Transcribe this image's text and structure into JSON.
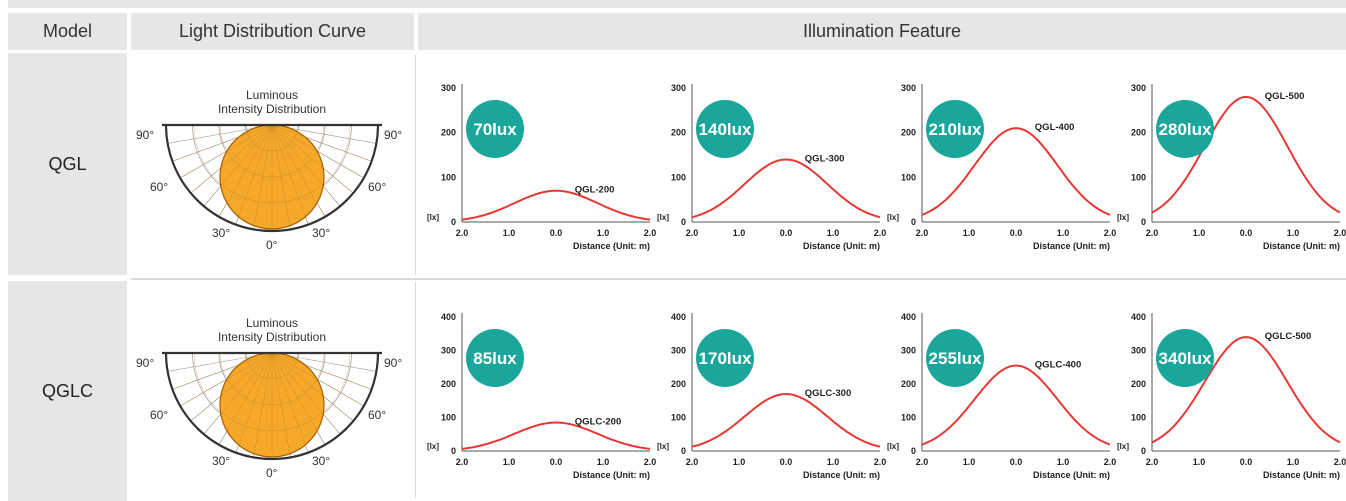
{
  "headers": {
    "model": "Model",
    "curve": "Light Distribution Curve",
    "feature": "Illumination Feature"
  },
  "polar_labels": {
    "title_line1": "Luminous",
    "title_line2": "Intensity Distribution",
    "a90_left": "90°",
    "a90_right": "90°",
    "a60_left": "60°",
    "a60_right": "60°",
    "a30_left": "30°",
    "a30_right": "30°",
    "a0": "0°"
  },
  "colors": {
    "badge": "#1aa69a",
    "curve": "#e53935",
    "polar_fill": "#f4a92a",
    "header_bg": "#e6e6e6"
  },
  "rows": [
    {
      "model": "QGL"
    },
    {
      "model": "QGLC"
    }
  ],
  "chart_data": [
    {
      "type": "line",
      "row": 0,
      "ylim": [
        0,
        300
      ],
      "yticks": [
        "0",
        "100",
        "200",
        "300"
      ],
      "x": [
        -2,
        -1,
        0,
        1,
        2
      ],
      "xticks": [
        "2.0",
        "1.0",
        "0.0",
        "1.0",
        "2.0"
      ],
      "xlabel": "Distance (Unit: m)",
      "ylabel": "[lx]",
      "peak": 70,
      "badge": "70lux",
      "series_label": "QGL-200"
    },
    {
      "type": "line",
      "row": 0,
      "ylim": [
        0,
        300
      ],
      "yticks": [
        "0",
        "100",
        "200",
        "300"
      ],
      "x": [
        -2,
        -1,
        0,
        1,
        2
      ],
      "xticks": [
        "2.0",
        "1.0",
        "0.0",
        "1.0",
        "2.0"
      ],
      "xlabel": "Distance (Unit: m)",
      "ylabel": "[lx]",
      "peak": 140,
      "badge": "140lux",
      "series_label": "QGL-300"
    },
    {
      "type": "line",
      "row": 0,
      "ylim": [
        0,
        300
      ],
      "yticks": [
        "0",
        "100",
        "200",
        "300"
      ],
      "x": [
        -2,
        -1,
        0,
        1,
        2
      ],
      "xticks": [
        "2.0",
        "1.0",
        "0.0",
        "1.0",
        "2.0"
      ],
      "xlabel": "Distance (Unit: m)",
      "ylabel": "[lx]",
      "peak": 210,
      "badge": "210lux",
      "series_label": "QGL-400"
    },
    {
      "type": "line",
      "row": 0,
      "ylim": [
        0,
        300
      ],
      "yticks": [
        "0",
        "100",
        "200",
        "300"
      ],
      "x": [
        -2,
        -1,
        0,
        1,
        2
      ],
      "xticks": [
        "2.0",
        "1.0",
        "0.0",
        "1.0",
        "2.0"
      ],
      "xlabel": "Distance (Unit: m)",
      "ylabel": "[lx]",
      "peak": 280,
      "badge": "280lux",
      "series_label": "QGL-500"
    },
    {
      "type": "line",
      "row": 1,
      "ylim": [
        0,
        400
      ],
      "yticks": [
        "0",
        "100",
        "200",
        "300",
        "400"
      ],
      "x": [
        -2,
        -1,
        0,
        1,
        2
      ],
      "xticks": [
        "2.0",
        "1.0",
        "0.0",
        "1.0",
        "2.0"
      ],
      "xlabel": "Distance (Unit: m)",
      "ylabel": "[lx]",
      "peak": 85,
      "badge": "85lux",
      "series_label": "QGLC-200"
    },
    {
      "type": "line",
      "row": 1,
      "ylim": [
        0,
        400
      ],
      "yticks": [
        "0",
        "100",
        "200",
        "300",
        "400"
      ],
      "x": [
        -2,
        -1,
        0,
        1,
        2
      ],
      "xticks": [
        "2.0",
        "1.0",
        "0.0",
        "1.0",
        "2.0"
      ],
      "xlabel": "Distance (Unit: m)",
      "ylabel": "[lx]",
      "peak": 170,
      "badge": "170lux",
      "series_label": "QGLC-300"
    },
    {
      "type": "line",
      "row": 1,
      "ylim": [
        0,
        400
      ],
      "yticks": [
        "0",
        "100",
        "200",
        "300",
        "400"
      ],
      "x": [
        -2,
        -1,
        0,
        1,
        2
      ],
      "xticks": [
        "2.0",
        "1.0",
        "0.0",
        "1.0",
        "2.0"
      ],
      "xlabel": "Distance (Unit: m)",
      "ylabel": "[lx]",
      "peak": 255,
      "badge": "255lux",
      "series_label": "QGLC-400"
    },
    {
      "type": "line",
      "row": 1,
      "ylim": [
        0,
        400
      ],
      "yticks": [
        "0",
        "100",
        "200",
        "300",
        "400"
      ],
      "x": [
        -2,
        -1,
        0,
        1,
        2
      ],
      "xticks": [
        "2.0",
        "1.0",
        "0.0",
        "1.0",
        "2.0"
      ],
      "xlabel": "Distance (Unit: m)",
      "ylabel": "[lx]",
      "peak": 340,
      "badge": "340lux",
      "series_label": "QGLC-500"
    }
  ]
}
